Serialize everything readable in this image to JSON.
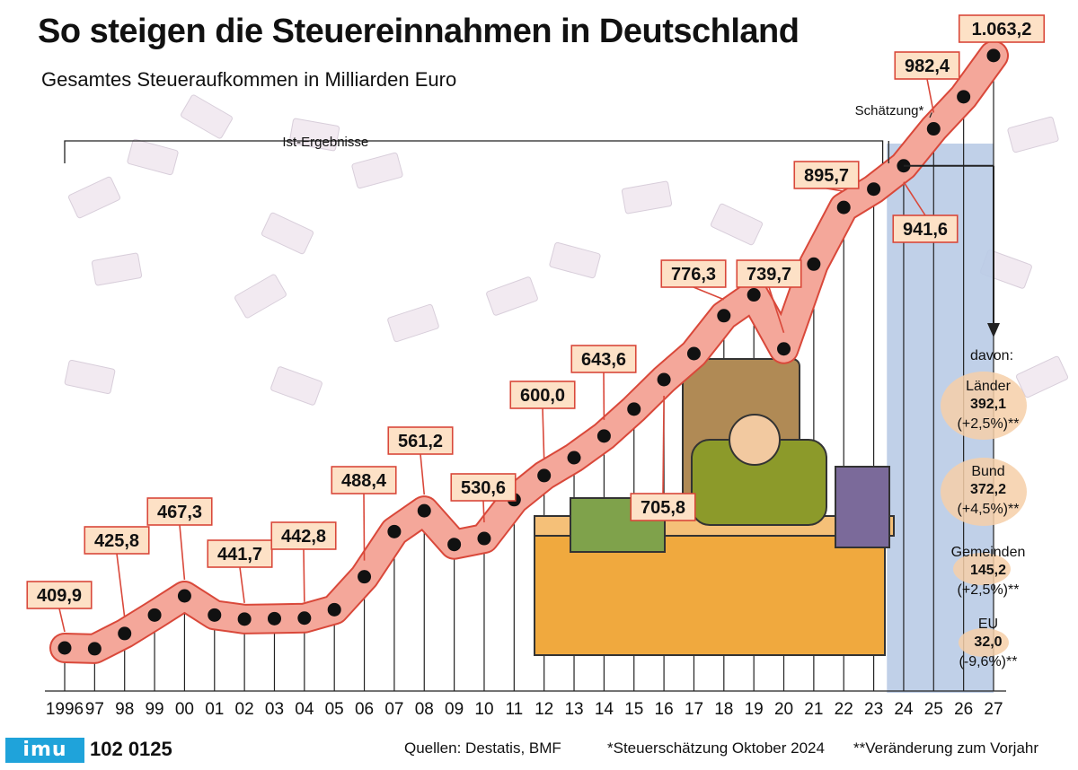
{
  "chart_data": {
    "type": "line",
    "title": "So steigen die Steuereinnahmen in Deutschland",
    "subtitle": "Gesamtes Steueraufkommen in Milliarden Euro",
    "x": [
      "1996",
      "97",
      "98",
      "99",
      "00",
      "01",
      "02",
      "03",
      "04",
      "05",
      "06",
      "07",
      "08",
      "09",
      "10",
      "11",
      "12",
      "13",
      "14",
      "15",
      "16",
      "17",
      "18",
      "19",
      "20",
      "21",
      "22",
      "23",
      "24",
      "25",
      "26",
      "27"
    ],
    "values": [
      409.9,
      409.0,
      425.8,
      446.2,
      467.3,
      446.2,
      441.7,
      442.2,
      442.8,
      452.1,
      488.4,
      538.2,
      561.2,
      524.0,
      530.6,
      573.4,
      600.0,
      619.7,
      643.6,
      673.3,
      705.8,
      734.5,
      776.3,
      799.3,
      739.7,
      833.2,
      895.7,
      915.9,
      941.6,
      982.4,
      1017.7,
      1063.2
    ],
    "ylim": [
      400,
      1070
    ],
    "labeled_points": [
      {
        "x": "1996",
        "label": "409,9"
      },
      {
        "x": "98",
        "label": "425,8"
      },
      {
        "x": "00",
        "label": "467,3"
      },
      {
        "x": "02",
        "label": "441,7"
      },
      {
        "x": "04",
        "label": "442,8"
      },
      {
        "x": "06",
        "label": "488,4"
      },
      {
        "x": "08",
        "label": "561,2"
      },
      {
        "x": "10",
        "label": "530,6"
      },
      {
        "x": "12",
        "label": "600,0"
      },
      {
        "x": "14",
        "label": "643,6"
      },
      {
        "x": "16",
        "label": "705,8"
      },
      {
        "x": "18",
        "label": "776,3"
      },
      {
        "x": "20",
        "label": "739,7"
      },
      {
        "x": "22",
        "label": "895,7"
      },
      {
        "x": "24",
        "label": "941,6"
      },
      {
        "x": "25",
        "label": "982,4"
      },
      {
        "x": "27",
        "label": "1.063,2"
      }
    ],
    "annotations": {
      "actual": "Ist-Ergebnisse",
      "estimate": "Schätzung*",
      "estimate_from": "24"
    },
    "breakdown": {
      "heading": "davon:",
      "items": [
        {
          "name": "Länder",
          "value": "392,1",
          "change": "(+2,5%)**"
        },
        {
          "name": "Bund",
          "value": "372,2",
          "change": "(+4,5%)**"
        },
        {
          "name": "Gemeinden",
          "value": "145,2",
          "change": "(+2,5%)**"
        },
        {
          "name": "EU",
          "value": "32,0",
          "change": "(-9,6%)**"
        }
      ]
    },
    "colors": {
      "line": "#f4a79a",
      "line_edge": "#d9483a",
      "label_bg": "#fde1c6",
      "estimate_band": "#b9cbe6",
      "dot": "#111111"
    }
  },
  "footer": {
    "brand": "imu",
    "code": "102 0125",
    "sources": "Quellen: Destatis, BMF",
    "note1": "*Steuerschätzung Oktober 2024",
    "note2": "**Veränderung zum Vorjahr"
  }
}
